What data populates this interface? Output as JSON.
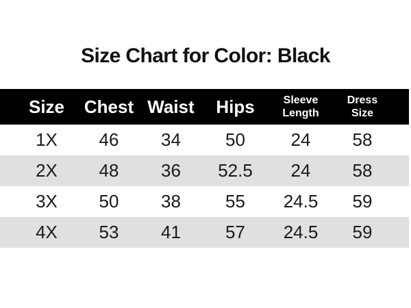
{
  "title": "Size Chart for Color: Black",
  "chart_data": {
    "type": "table",
    "title": "Size Chart for Color: Black",
    "columns": [
      "Size",
      "Chest",
      "Waist",
      "Hips",
      "Sleeve Length",
      "Dress Size"
    ],
    "columns_display": [
      {
        "line1": "Size"
      },
      {
        "line1": "Chest"
      },
      {
        "line1": "Waist"
      },
      {
        "line1": "Hips"
      },
      {
        "line1": "Sleeve",
        "line2": "Length"
      },
      {
        "line1": "Dress",
        "line2": "Size"
      }
    ],
    "rows": [
      [
        "1X",
        "46",
        "34",
        "50",
        "24",
        "58"
      ],
      [
        "2X",
        "48",
        "36",
        "52.5",
        "24",
        "58"
      ],
      [
        "3X",
        "50",
        "38",
        "55",
        "24.5",
        "59"
      ],
      [
        "4X",
        "53",
        "41",
        "57",
        "24.5",
        "59"
      ]
    ],
    "layout": {
      "zebra_striping": true,
      "header_style": "black-band",
      "gridlines": false
    }
  },
  "colors": {
    "page_bg": "#ffffff",
    "header_bg": "#000000",
    "header_text": "#ffffff",
    "row_bg": "#ffffff",
    "row_alt_bg": "#e0e0e0",
    "body_text": "#1a1a1a",
    "title_text": "#111111"
  }
}
